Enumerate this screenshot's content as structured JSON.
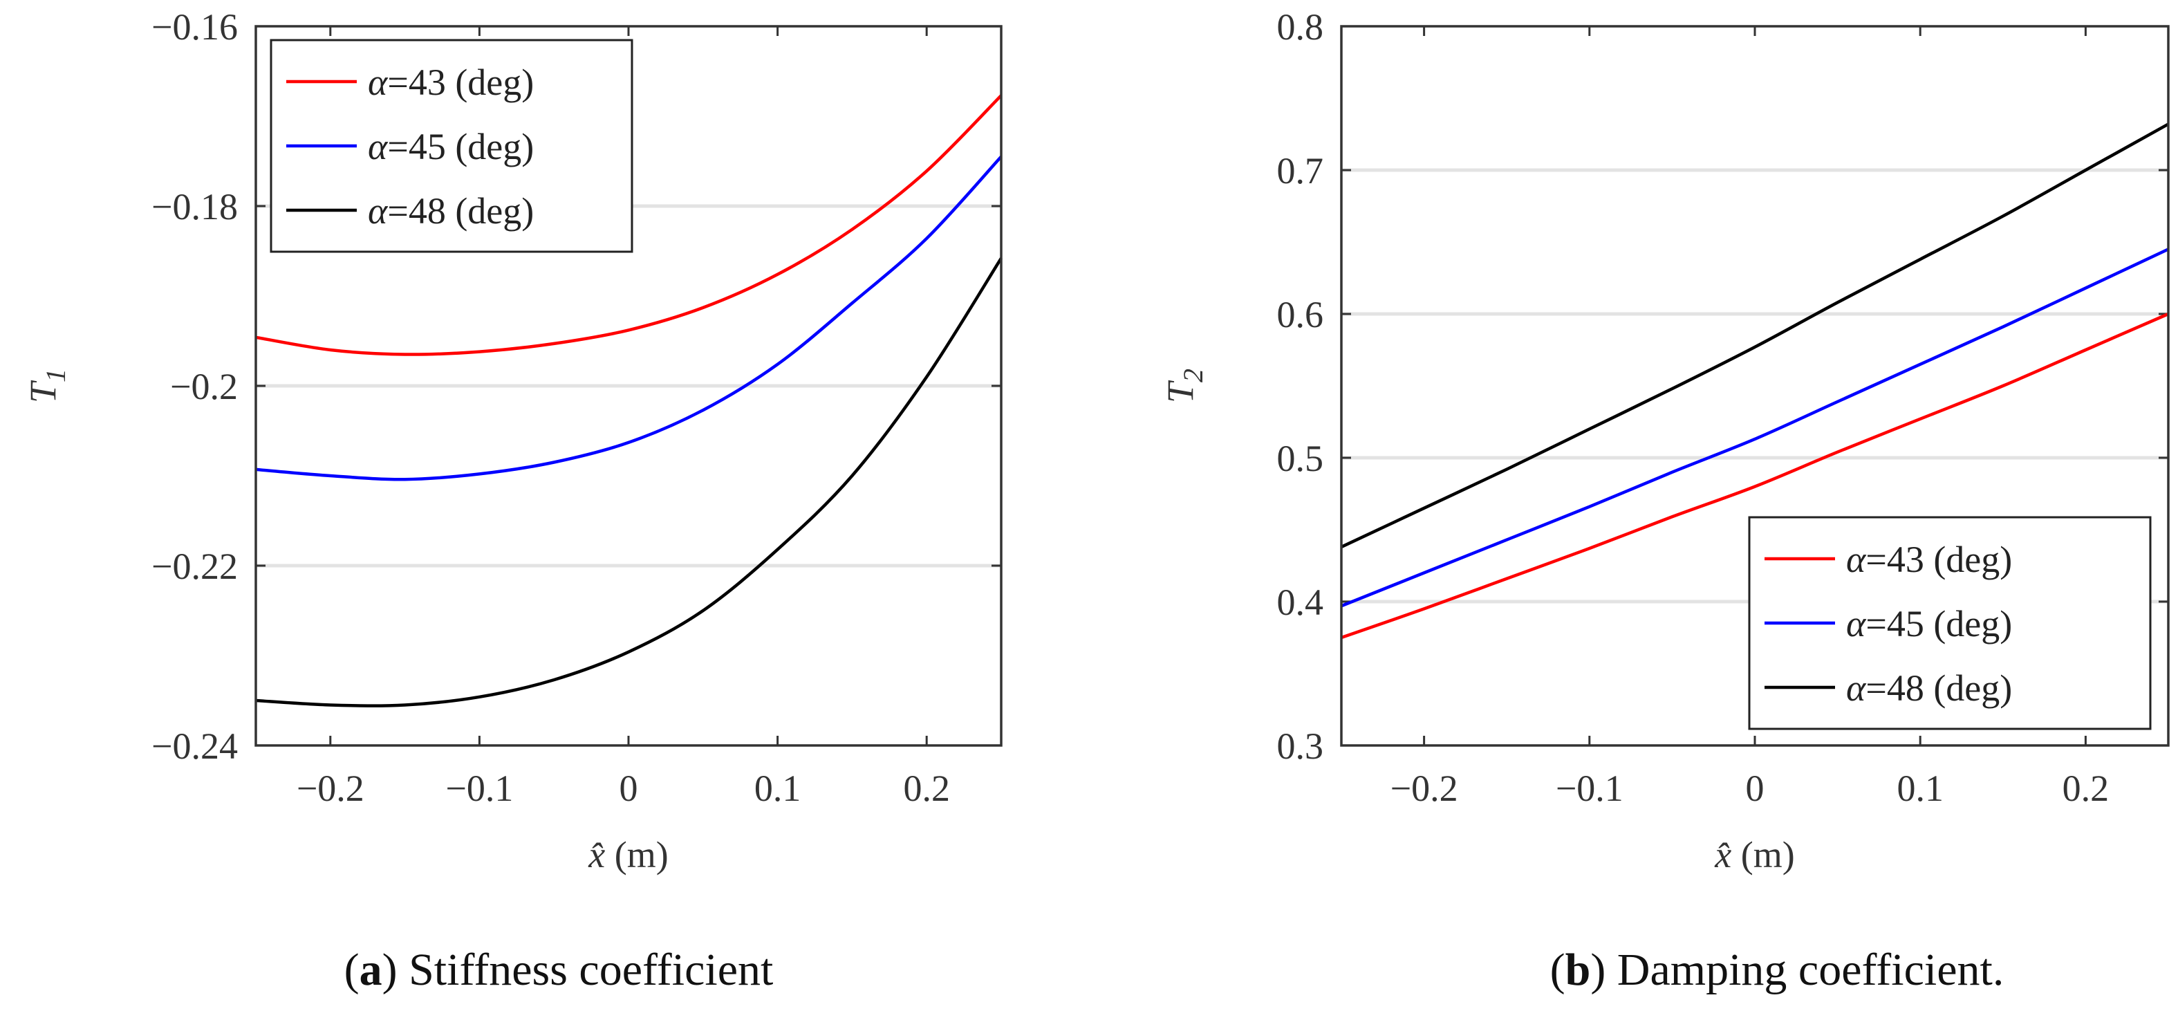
{
  "chart_data": [
    {
      "type": "line",
      "caption_letter": "a",
      "caption_text": ") Stiffness coefficient",
      "caption_open": "(",
      "xlabel_symbol": "x̂",
      "xlabel_unit": "(m)",
      "ylabel_symbol": "T",
      "ylabel_sub": "1",
      "xlim": [
        -0.25,
        0.25
      ],
      "ylim": [
        -0.24,
        -0.16
      ],
      "xticks": [
        -0.2,
        -0.1,
        0,
        0.1,
        0.2
      ],
      "xtick_labels": [
        "−0.2",
        "−0.1",
        "0",
        "0.1",
        "0.2"
      ],
      "yticks": [
        -0.24,
        -0.22,
        -0.2,
        -0.18,
        -0.16
      ],
      "ytick_labels": [
        "−0.24",
        "−0.22",
        "−0.2",
        "−0.18",
        "−0.16"
      ],
      "grid": "horizontal",
      "legend_position": "top-left",
      "x": [
        -0.25,
        -0.2,
        -0.15,
        -0.1,
        -0.05,
        0,
        0.05,
        0.1,
        0.15,
        0.2,
        0.25
      ],
      "series": [
        {
          "name": "α=43 (deg)",
          "greek": "α",
          "rest": "=43 (deg)",
          "color": "#ff0000",
          "values": [
            -0.1946,
            -0.196,
            -0.1965,
            -0.1962,
            -0.1953,
            -0.1938,
            -0.1913,
            -0.1876,
            -0.1826,
            -0.1761,
            -0.1677
          ]
        },
        {
          "name": "α=45 (deg)",
          "greek": "α",
          "rest": "=45 (deg)",
          "color": "#0000ff",
          "values": [
            -0.2093,
            -0.21,
            -0.2104,
            -0.2098,
            -0.2085,
            -0.2063,
            -0.2027,
            -0.1976,
            -0.1908,
            -0.1836,
            -0.1745
          ]
        },
        {
          "name": "α=48 (deg)",
          "greek": "α",
          "rest": "=48 (deg)",
          "color": "#000000",
          "values": [
            -0.235,
            -0.2355,
            -0.2355,
            -0.2346,
            -0.2327,
            -0.2296,
            -0.225,
            -0.2182,
            -0.21,
            -0.199,
            -0.1858
          ]
        }
      ]
    },
    {
      "type": "line",
      "caption_letter": "b",
      "caption_text": ") Damping coefficient.",
      "caption_open": "(",
      "xlabel_symbol": "x̂",
      "xlabel_unit": "(m)",
      "ylabel_symbol": "T",
      "ylabel_sub": "2",
      "xlim": [
        -0.25,
        0.25
      ],
      "ylim": [
        0.3,
        0.8
      ],
      "xticks": [
        -0.2,
        -0.1,
        0,
        0.1,
        0.2
      ],
      "xtick_labels": [
        "−0.2",
        "−0.1",
        "0",
        "0.1",
        "0.2"
      ],
      "yticks": [
        0.3,
        0.4,
        0.5,
        0.6,
        0.7,
        0.8
      ],
      "ytick_labels": [
        "0.3",
        "0.4",
        "0.5",
        "0.6",
        "0.7",
        "0.8"
      ],
      "grid": "horizontal",
      "legend_position": "bottom-right",
      "x": [
        -0.25,
        -0.2,
        -0.15,
        -0.1,
        -0.05,
        0,
        0.05,
        0.1,
        0.15,
        0.2,
        0.25
      ],
      "series": [
        {
          "name": "α=43 (deg)",
          "greek": "α",
          "rest": "=43 (deg)",
          "color": "#ff0000",
          "values": [
            0.375,
            0.395,
            0.416,
            0.437,
            0.459,
            0.48,
            0.504,
            0.527,
            0.55,
            0.575,
            0.6
          ]
        },
        {
          "name": "α=45 (deg)",
          "greek": "α",
          "rest": "=45 (deg)",
          "color": "#0000ff",
          "values": [
            0.397,
            0.42,
            0.443,
            0.466,
            0.49,
            0.513,
            0.539,
            0.565,
            0.591,
            0.618,
            0.645
          ]
        },
        {
          "name": "α=48 (deg)",
          "greek": "α",
          "rest": "=48 (deg)",
          "color": "#000000",
          "values": [
            0.438,
            0.465,
            0.492,
            0.52,
            0.548,
            0.577,
            0.608,
            0.638,
            0.668,
            0.7,
            0.732
          ]
        }
      ]
    }
  ]
}
